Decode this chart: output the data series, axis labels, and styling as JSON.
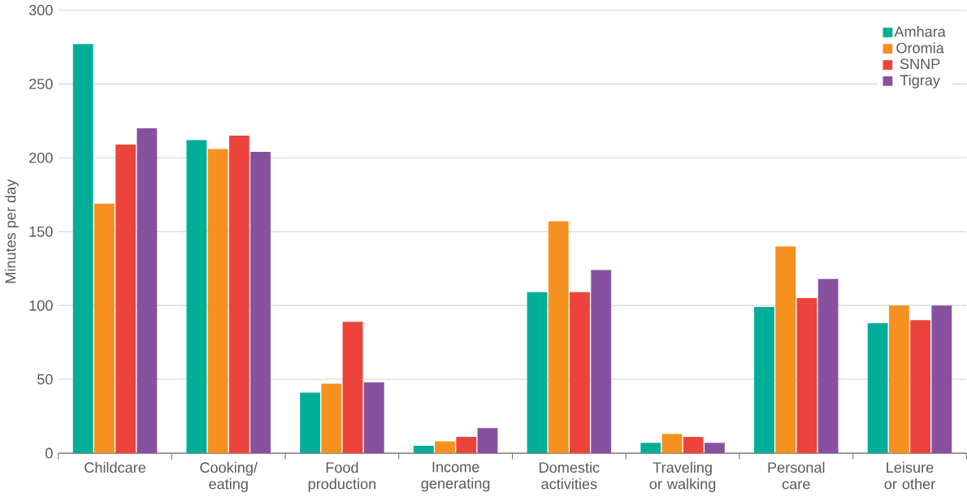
{
  "chart_data": {
    "type": "bar",
    "ylabel": "Minutes per day",
    "categories": [
      "Childcare",
      "Cooking/ eating",
      "Food production",
      "Income generating",
      "Domestic activities",
      "Traveling or walking",
      "Personal care",
      "Leisure or other"
    ],
    "series": [
      {
        "name": "Amhara",
        "color": "#00ae98",
        "values": [
          277,
          212,
          41,
          5,
          109,
          7,
          99,
          88
        ]
      },
      {
        "name": "Oromia",
        "color": "#f59120",
        "values": [
          169,
          206,
          47,
          8,
          157,
          13,
          140,
          100
        ]
      },
      {
        "name": "SNNP",
        "color": "#ec443c",
        "values": [
          209,
          215,
          89,
          11,
          109,
          11,
          105,
          90
        ]
      },
      {
        "name": "Tigray",
        "color": "#8851a0",
        "values": [
          220,
          204,
          48,
          17,
          124,
          7,
          118,
          100
        ]
      }
    ],
    "ylim": [
      0,
      300
    ],
    "yticks": [
      0,
      50,
      100,
      150,
      200,
      250,
      300
    ],
    "grid": "y",
    "legend": "top right"
  }
}
